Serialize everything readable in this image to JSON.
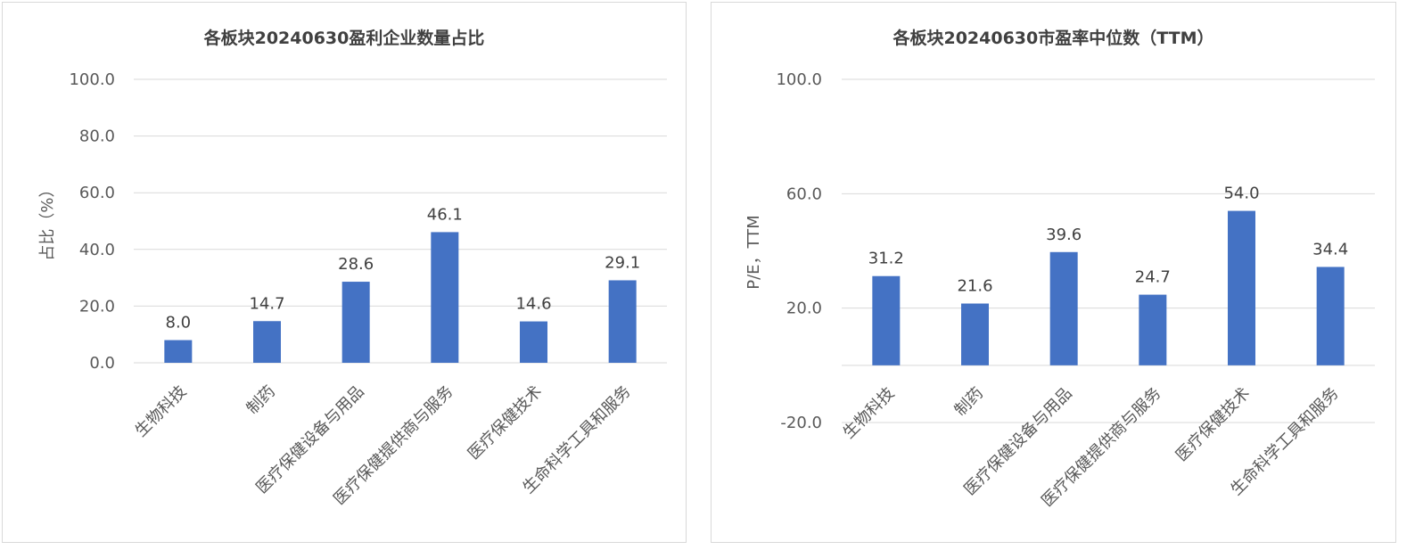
{
  "chart_data": [
    {
      "type": "bar",
      "title": "各板块20240630盈利企业数量占比",
      "ylabel": "占比（%）",
      "xlabel": "",
      "categories": [
        "生物科技",
        "制药",
        "医疗保健设备与用品",
        "医疗保健提供商与服务",
        "医疗保健技术",
        "生命科学工具和服务"
      ],
      "values": [
        8.0,
        14.7,
        28.6,
        46.1,
        14.6,
        29.1
      ],
      "data_labels": [
        "8.0",
        "14.7",
        "28.6",
        "46.1",
        "14.6",
        "29.1"
      ],
      "ylim": [
        0,
        100
      ],
      "yticks": [
        "0.0",
        "20.0",
        "40.0",
        "60.0",
        "80.0",
        "100.0"
      ],
      "grid": true,
      "legend": "none",
      "colors": {
        "bar": "#4472c4",
        "grid": "#d9d9d9"
      }
    },
    {
      "type": "bar",
      "title": "各板块20240630市盈率中位数（TTM）",
      "ylabel": "P/E，TTM",
      "xlabel": "",
      "categories": [
        "生物科技",
        "制药",
        "医疗保健设备与用品",
        "医疗保健提供商与服务",
        "医疗保健技术",
        "生命科学工具和服务"
      ],
      "values": [
        31.2,
        21.6,
        39.6,
        24.7,
        54.0,
        34.4
      ],
      "data_labels": [
        "31.2",
        "21.6",
        "39.6",
        "24.7",
        "54.0",
        "34.4"
      ],
      "ylim": [
        -20,
        100
      ],
      "yticks": [
        "-20.0",
        "20.0",
        "60.0",
        "100.0"
      ],
      "grid": true,
      "legend": "none",
      "colors": {
        "bar": "#4472c4",
        "grid": "#d9d9d9"
      }
    }
  ]
}
